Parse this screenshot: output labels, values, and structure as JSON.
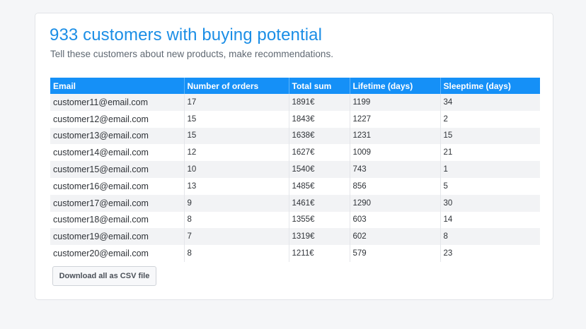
{
  "header": {
    "title": "933 customers with buying potential",
    "subtitle": "Tell these customers about new products, make recommendations."
  },
  "table": {
    "columns": [
      "Email",
      "Number of orders",
      "Total sum",
      "Lifetime (days)",
      "Sleeptime (days)"
    ],
    "rows": [
      [
        "customer11@email.com",
        "17",
        "1891€",
        "1199",
        "34"
      ],
      [
        "customer12@email.com",
        "15",
        "1843€",
        "1227",
        "2"
      ],
      [
        "customer13@email.com",
        "15",
        "1638€",
        "1231",
        "15"
      ],
      [
        "customer14@email.com",
        "12",
        "1627€",
        "1009",
        "21"
      ],
      [
        "customer15@email.com",
        "10",
        "1540€",
        "743",
        "1"
      ],
      [
        "customer16@email.com",
        "13",
        "1485€",
        "856",
        "5"
      ],
      [
        "customer17@email.com",
        "9",
        "1461€",
        "1290",
        "30"
      ],
      [
        "customer18@email.com",
        "8",
        "1355€",
        "603",
        "14"
      ],
      [
        "customer19@email.com",
        "7",
        "1319€",
        "602",
        "8"
      ],
      [
        "customer20@email.com",
        "8",
        "1211€",
        "579",
        "23"
      ]
    ]
  },
  "actions": {
    "download_label": "Download all as CSV file"
  },
  "colors": {
    "accent": "#1b8ee6",
    "header_bg": "#1590f7"
  }
}
